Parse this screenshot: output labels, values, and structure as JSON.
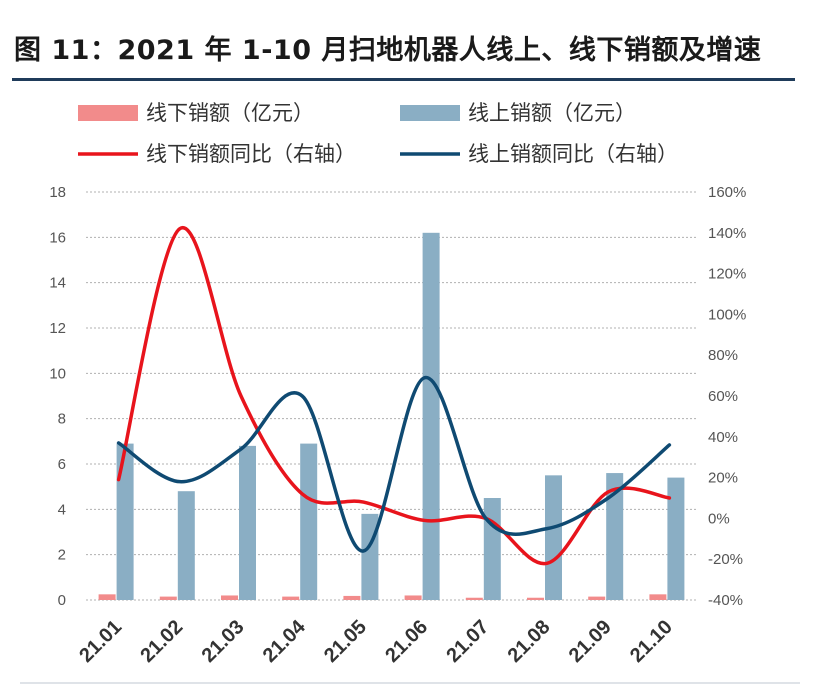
{
  "title": "图 11：2021 年 1-10 月扫地机器人线上、线下销额及增速",
  "chart_data": {
    "type": "bar+line",
    "categories": [
      "21.01",
      "21.02",
      "21.03",
      "21.04",
      "21.05",
      "21.06",
      "21.07",
      "21.08",
      "21.09",
      "21.10"
    ],
    "series": [
      {
        "name": "线下销额（亿元）",
        "kind": "bar",
        "axis": "left",
        "color": "#f28b8b",
        "values": [
          0.25,
          0.15,
          0.2,
          0.15,
          0.18,
          0.2,
          0.1,
          0.1,
          0.15,
          0.25
        ]
      },
      {
        "name": "线上销额（亿元）",
        "kind": "bar",
        "axis": "left",
        "color": "#8aaec4",
        "values": [
          6.9,
          4.8,
          6.8,
          6.9,
          3.8,
          16.2,
          4.5,
          5.5,
          5.6,
          5.4
        ]
      },
      {
        "name": "线下销额同比（右轴）",
        "kind": "line",
        "axis": "right",
        "color": "#e8141c",
        "values": [
          0.19,
          1.42,
          0.6,
          0.12,
          0.08,
          -0.01,
          0.0,
          -0.22,
          0.13,
          0.1
        ]
      },
      {
        "name": "线上销额同比（右轴）",
        "kind": "line",
        "axis": "right",
        "color": "#0f4a72",
        "values": [
          0.37,
          0.18,
          0.34,
          0.6,
          -0.16,
          0.69,
          0.0,
          -0.05,
          0.1,
          0.36
        ]
      }
    ],
    "y_left": {
      "min": 0,
      "max": 18,
      "ticks": [
        "0",
        "2",
        "4",
        "6",
        "8",
        "10",
        "12",
        "14",
        "16",
        "18"
      ]
    },
    "y_right": {
      "min": -0.4,
      "max": 1.6,
      "ticks": [
        "-40%",
        "-20%",
        "0%",
        "20%",
        "40%",
        "60%",
        "80%",
        "100%",
        "120%",
        "140%",
        "160%"
      ]
    },
    "grid": "dotted-horizontal",
    "legend_position": "top"
  }
}
